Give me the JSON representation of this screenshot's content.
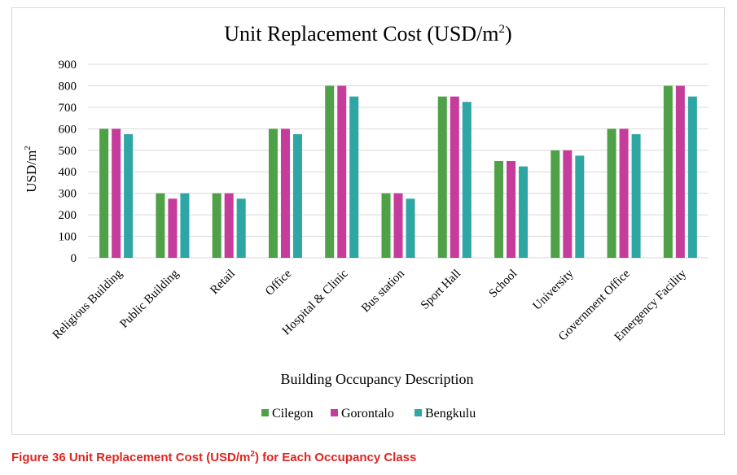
{
  "chart_data": {
    "type": "bar",
    "title": "Unit Replacement Cost (USD/m",
    "title_sup": "2",
    "title_end": ")",
    "xlabel": "Building Occupancy Description",
    "ylabel": "USD/m",
    "ylabel_sup": "2",
    "ylim": [
      0,
      900
    ],
    "yticks": [
      "0",
      "100",
      "200",
      "300",
      "400",
      "500",
      "600",
      "700",
      "800",
      "900"
    ],
    "grid": true,
    "legend_position": "bottom",
    "categories": [
      "Religious Building",
      "Public Building",
      "Retail",
      "Office",
      "Hospital & Clinic",
      "Bus station",
      "Sport Hall",
      "School",
      "University",
      "Government Office",
      "Emergency Facility"
    ],
    "series": [
      {
        "name": "Cilegon",
        "color": "#4ea147",
        "values": [
          600,
          300,
          300,
          600,
          800,
          300,
          750,
          450,
          500,
          600,
          800
        ]
      },
      {
        "name": "Gorontalo",
        "color": "#c63c9b",
        "values": [
          600,
          275,
          300,
          600,
          800,
          300,
          750,
          450,
          500,
          600,
          800
        ]
      },
      {
        "name": "Bengkulu",
        "color": "#2ea6a4",
        "values": [
          575,
          300,
          275,
          575,
          750,
          275,
          725,
          425,
          475,
          575,
          750
        ]
      }
    ]
  },
  "caption": {
    "prefix": "Figure 36 Unit Replacement Cost (USD/m",
    "sup": "2",
    "suffix": ") for Each Occupancy Class"
  }
}
